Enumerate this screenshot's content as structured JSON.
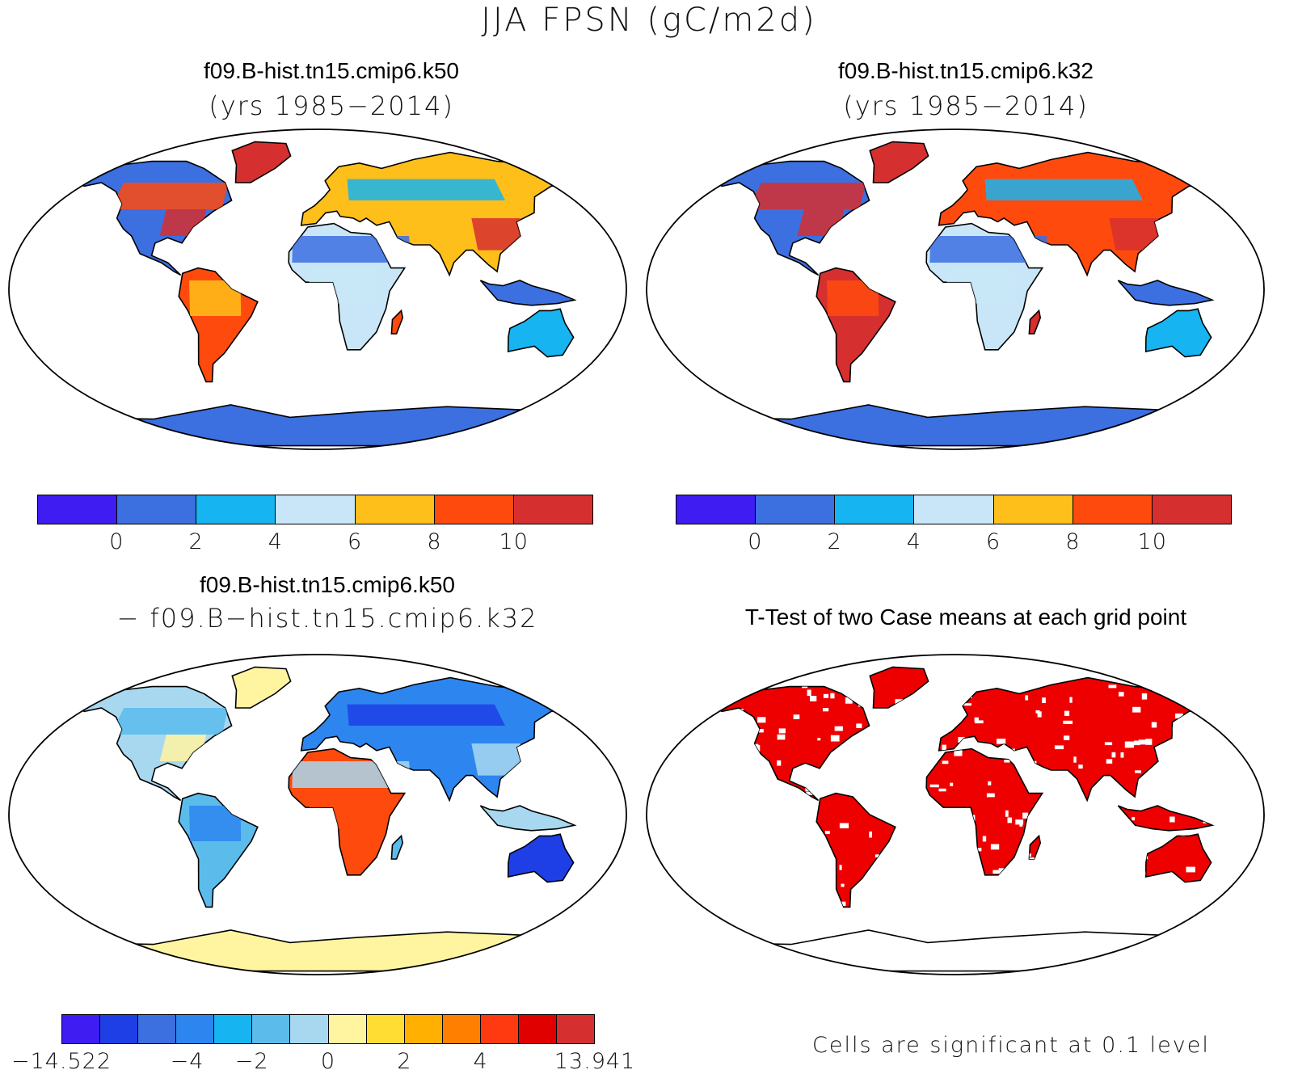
{
  "figure": {
    "title": "JJA FPSN (gC/m2d)"
  },
  "panels": [
    {
      "case": "f09.B-hist.tn15.cmip6.k50",
      "subtitle": "(yrs 1985−2014)",
      "ocean_color": "#ffffff",
      "antarctica_color": "#3c6fe0",
      "land_palette": [
        "#3c6fe0",
        "#ff4a0e",
        "#d62f2f",
        "#ffbf1a",
        "#c8e6f7",
        "#16b4f0",
        "#d62f2f"
      ]
    },
    {
      "case": "f09.B-hist.tn15.cmip6.k32",
      "subtitle": "(yrs 1985−2014)",
      "ocean_color": "#ffffff",
      "antarctica_color": "#3c6fe0",
      "land_palette": [
        "#3c6fe0",
        "#d62f2f",
        "#d62f2f",
        "#ff4a0e",
        "#c8e6f7",
        "#16b4f0",
        "#d62f2f"
      ]
    },
    {
      "case": "f09.B-hist.tn15.cmip6.k50",
      "subtitle": "− f09.B−hist.tn15.cmip6.k32",
      "ocean_color": "#ffffff",
      "antarctica_color": "#fff5a0",
      "land_palette": [
        "#a8d8f0",
        "#5bbcec",
        "#fff5a0",
        "#2d86f0",
        "#ff4a0e",
        "#1f3fe6",
        "#a8d8f0"
      ]
    },
    {
      "case": "T-Test of two Case means at each grid point",
      "subtitle": "",
      "ocean_color": "#ffffff",
      "antarctica_color": "#ffffff",
      "land_palette": [
        "#ee0000",
        "#ee0000",
        "#ee0000",
        "#ee0000",
        "#ee0000",
        "#ee0000",
        "#ee0000"
      ]
    }
  ],
  "colorbars": {
    "mean": {
      "colors": [
        "#3f1cf2",
        "#3c6fe0",
        "#16b4f0",
        "#c8e6f7",
        "#ffbf1a",
        "#ff4a0e",
        "#d62f2f"
      ],
      "labels": [
        "0",
        "2",
        "4",
        "6",
        "8",
        "10"
      ]
    },
    "diff": {
      "colors": [
        "#3f1cf2",
        "#1f3fe6",
        "#3c6fe0",
        "#2d86f0",
        "#16b4f0",
        "#5bbcec",
        "#a8d8f0",
        "#fff5a0",
        "#ffdd33",
        "#ffb000",
        "#ff8000",
        "#ff3a10",
        "#e00000",
        "#d62f2f"
      ],
      "labels": [
        "−14.522",
        "−4",
        "−2",
        "0",
        "2",
        "4",
        "13.941"
      ]
    }
  },
  "significance_note": "Cells are significant at 0.1 level"
}
